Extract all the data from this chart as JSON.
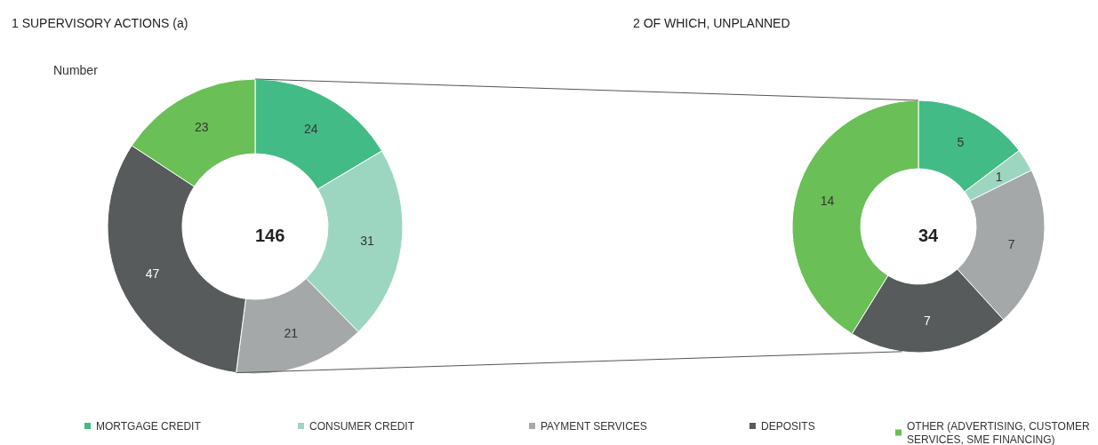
{
  "chart_data": [
    {
      "type": "donut",
      "title": "1 SUPERVISORY ACTIONS (a)",
      "subtitle": "Number",
      "categories": [
        "MORTGAGE CREDIT",
        "CONSUMER CREDIT",
        "PAYMENT SERVICES",
        "DEPOSITS",
        "OTHER (ADVERTISING, CUSTOMER SERVICES, SME FINANCING)"
      ],
      "values": [
        24,
        31,
        21,
        47,
        23
      ],
      "colors": [
        "#43bb87",
        "#9dd6c0",
        "#a5a8a9",
        "#575b5b",
        "#6abf57"
      ],
      "data_labels": true,
      "annotations": [
        "146"
      ],
      "legend": "bottom"
    },
    {
      "type": "donut",
      "title": "2 OF WHICH, UNPLANNED",
      "categories": [
        null,
        null,
        null,
        null,
        null
      ],
      "values": [
        5,
        1,
        7,
        7,
        14
      ],
      "colors": [
        "#43bb87",
        "#9dd6c0",
        "#a5a8a9",
        "#575b5b",
        "#6abf57"
      ],
      "data_labels": true,
      "annotations": [
        "34"
      ]
    }
  ]
}
